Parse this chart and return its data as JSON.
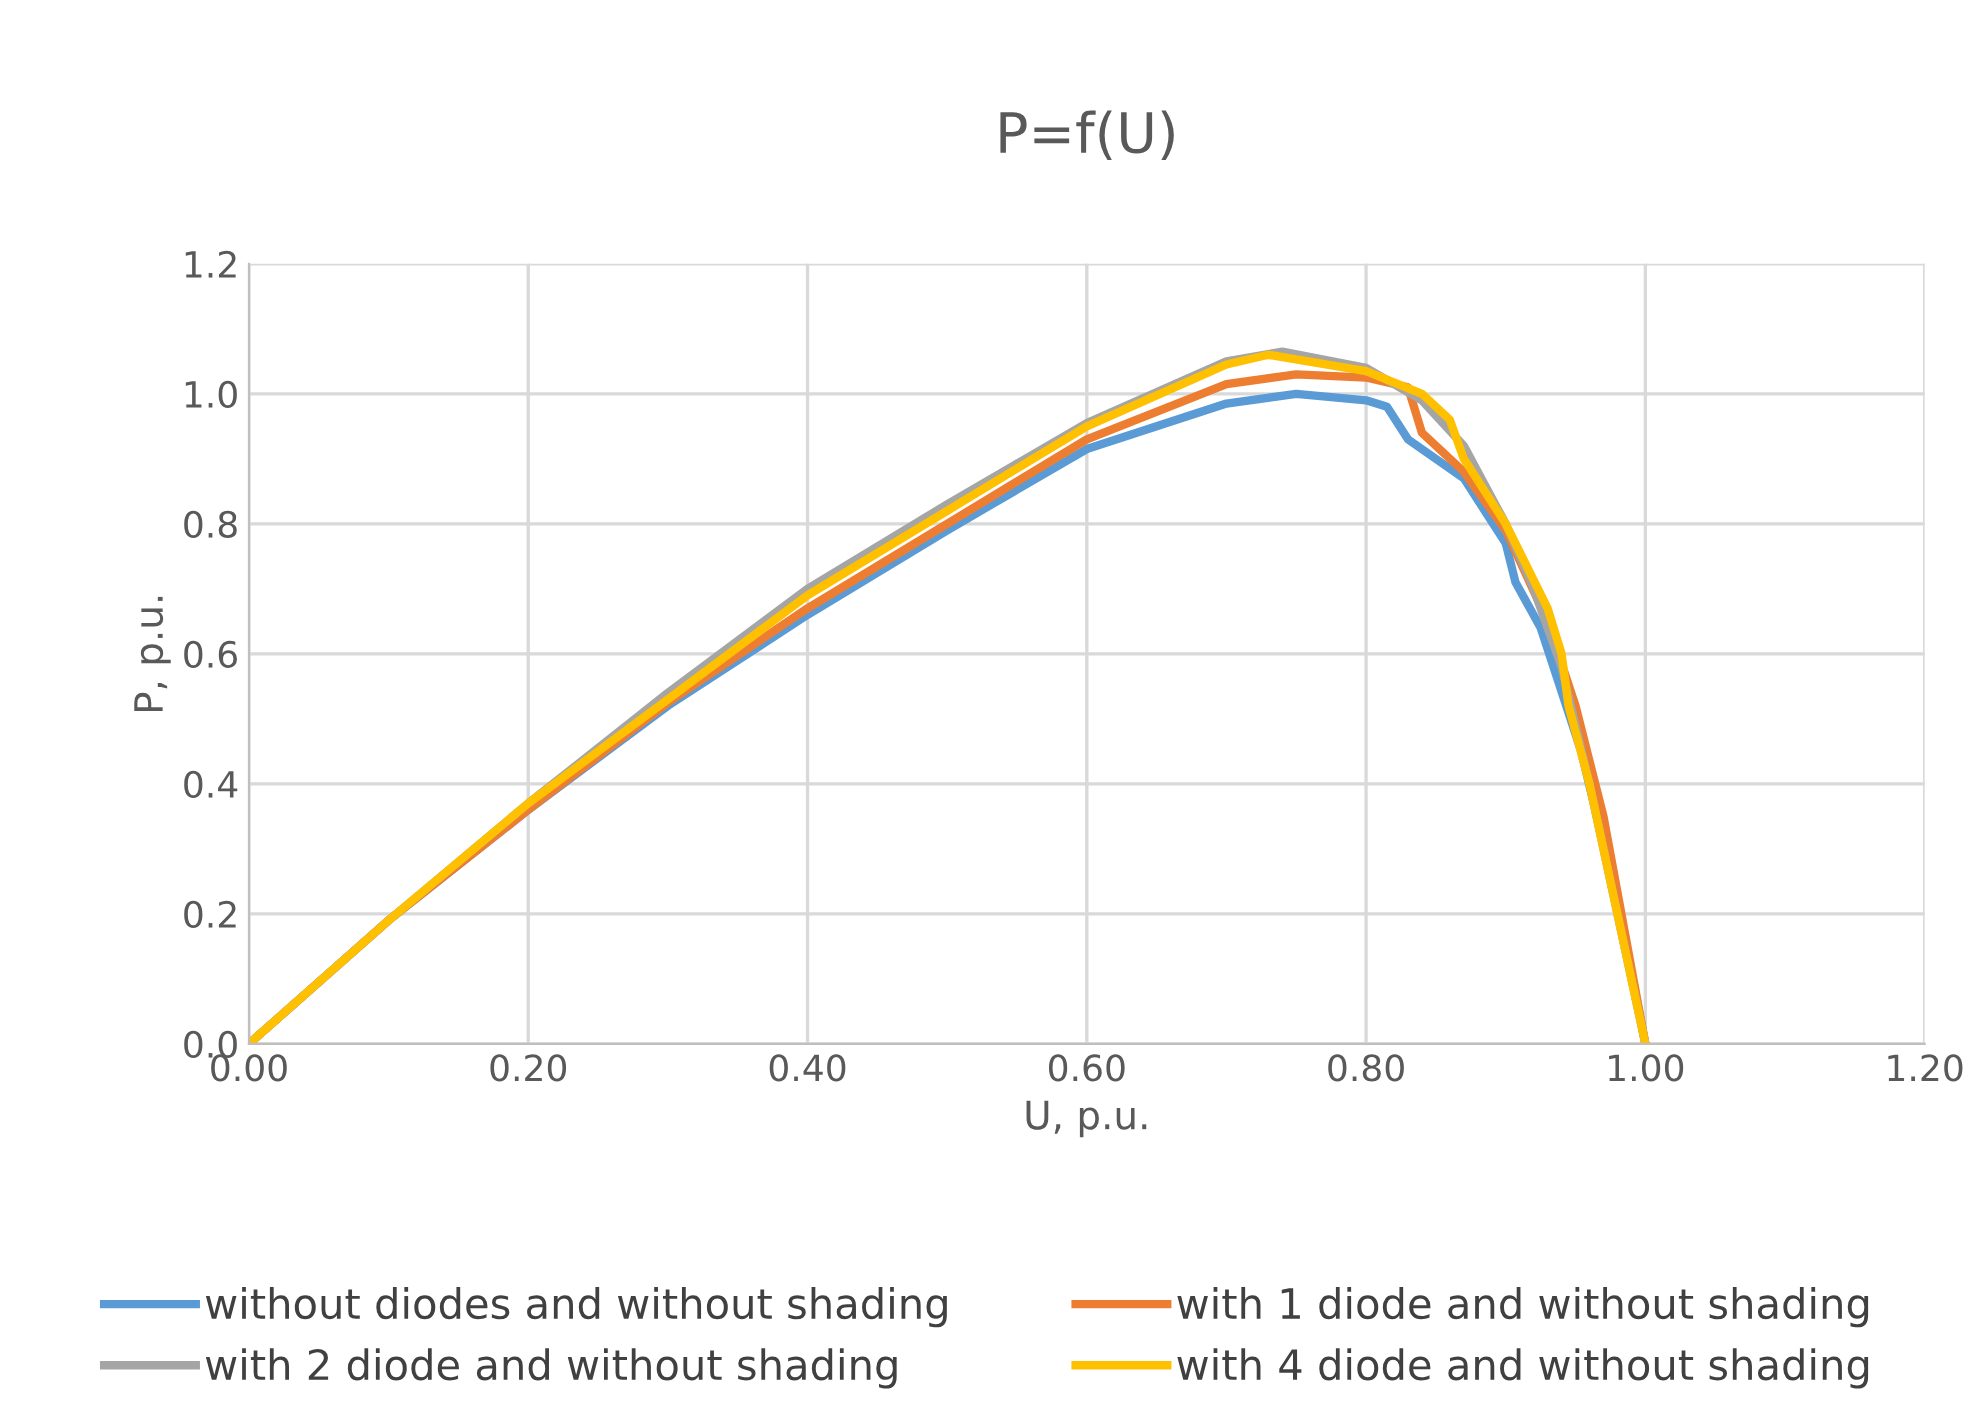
{
  "chart_data": {
    "type": "line",
    "title": "P=f(U)",
    "xlabel": "U, p.u.",
    "ylabel": "P, p.u.",
    "xlim": [
      0,
      1.2
    ],
    "xticks": [
      {
        "value": 0,
        "label": "0.00"
      },
      {
        "value": 0.2,
        "label": "0.20"
      },
      {
        "value": 0.4,
        "label": "0.40"
      },
      {
        "value": 0.6,
        "label": "0.60"
      },
      {
        "value": 0.8,
        "label": "0.80"
      },
      {
        "value": 1.0,
        "label": "1.00"
      },
      {
        "value": 1.2,
        "label": "1.20"
      }
    ],
    "ylim": [
      0,
      1.2
    ],
    "yticks": [
      {
        "value": 0,
        "label": "0.0"
      },
      {
        "value": 0.2,
        "label": "0.2"
      },
      {
        "value": 0.4,
        "label": "0.4"
      },
      {
        "value": 0.6,
        "label": "0.6"
      },
      {
        "value": 0.8,
        "label": "0.8"
      },
      {
        "value": 1.0,
        "label": "1.0"
      },
      {
        "value": 1.2,
        "label": "1.2"
      }
    ],
    "grid": true,
    "legend": "bottom",
    "marker": "none",
    "line_style": "solid",
    "series": [
      {
        "name": "without diodes and without shading",
        "color": "#5b9bd5",
        "x": [
          0,
          0.1,
          0.2,
          0.3,
          0.4,
          0.5,
          0.6,
          0.7,
          0.75,
          0.8,
          0.815,
          0.83,
          0.87,
          0.9,
          0.907,
          0.925,
          0.954,
          0.98,
          1.0
        ],
        "values": [
          0,
          0.19,
          0.36,
          0.52,
          0.66,
          0.79,
          0.915,
          0.985,
          1.0,
          0.99,
          0.98,
          0.93,
          0.87,
          0.77,
          0.71,
          0.64,
          0.45,
          0.22,
          0
        ]
      },
      {
        "name": "with 1 diode and without shading",
        "color": "#ed7d31",
        "x": [
          0,
          0.1,
          0.2,
          0.3,
          0.4,
          0.5,
          0.6,
          0.7,
          0.75,
          0.8,
          0.83,
          0.84,
          0.87,
          0.9,
          0.93,
          0.95,
          0.97,
          1.0
        ],
        "values": [
          0,
          0.19,
          0.36,
          0.525,
          0.67,
          0.8,
          0.93,
          1.015,
          1.03,
          1.025,
          1.01,
          0.94,
          0.88,
          0.79,
          0.65,
          0.52,
          0.35,
          0
        ]
      },
      {
        "name": "with 2 diode and without shading",
        "color": "#a5a5a5",
        "x": [
          0,
          0.1,
          0.2,
          0.3,
          0.4,
          0.5,
          0.6,
          0.7,
          0.74,
          0.8,
          0.84,
          0.87,
          0.9,
          0.92,
          0.94,
          0.96,
          1.0
        ],
        "values": [
          0,
          0.19,
          0.37,
          0.54,
          0.7,
          0.83,
          0.955,
          1.05,
          1.065,
          1.04,
          0.99,
          0.92,
          0.8,
          0.7,
          0.58,
          0.4,
          0
        ]
      },
      {
        "name": "with 4 diode and without shading",
        "color": "#ffc000",
        "x": [
          0,
          0.1,
          0.2,
          0.3,
          0.4,
          0.5,
          0.6,
          0.7,
          0.73,
          0.8,
          0.84,
          0.86,
          0.87,
          0.9,
          0.93,
          0.94,
          0.945,
          0.96,
          1.0
        ],
        "values": [
          0,
          0.19,
          0.37,
          0.53,
          0.69,
          0.82,
          0.95,
          1.045,
          1.06,
          1.035,
          1.0,
          0.96,
          0.9,
          0.8,
          0.67,
          0.6,
          0.52,
          0.4,
          0
        ]
      }
    ]
  }
}
